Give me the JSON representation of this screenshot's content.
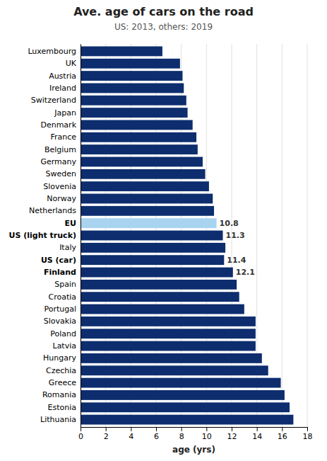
{
  "chart_data": {
    "type": "bar",
    "orientation": "horizontal",
    "title": "Ave. age of cars on the road",
    "subtitle": "US: 2013, others: 2019",
    "xlabel": "age (yrs)",
    "categories": [
      "Luxembourg",
      "UK",
      "Austria",
      "Ireland",
      "Switzerland",
      "Japan",
      "Denmark",
      "France",
      "Belgium",
      "Germany",
      "Sweden",
      "Slovenia",
      "Norway",
      "Netherlands",
      "EU",
      "US (light truck)",
      "Italy",
      "US (car)",
      "Finland",
      "Spain",
      "Croatia",
      "Portugal",
      "Slovakia",
      "Poland",
      "Latvia",
      "Hungary",
      "Czechia",
      "Greece",
      "Romania",
      "Estonia",
      "Lithuania"
    ],
    "values": [
      6.5,
      7.9,
      8.1,
      8.2,
      8.4,
      8.5,
      8.9,
      9.2,
      9.3,
      9.7,
      9.9,
      10.2,
      10.5,
      10.6,
      10.8,
      11.3,
      11.5,
      11.4,
      12.1,
      12.4,
      12.6,
      13.0,
      13.9,
      13.9,
      13.9,
      14.4,
      14.9,
      15.9,
      16.2,
      16.6,
      16.9
    ],
    "colors": [
      "#0d2d6e",
      "#0d2d6e",
      "#0d2d6e",
      "#0d2d6e",
      "#0d2d6e",
      "#0d2d6e",
      "#0d2d6e",
      "#0d2d6e",
      "#0d2d6e",
      "#0d2d6e",
      "#0d2d6e",
      "#0d2d6e",
      "#0d2d6e",
      "#0d2d6e",
      "#a8d4f0",
      "#0d2d6e",
      "#0d2d6e",
      "#0d2d6e",
      "#0d2d6e",
      "#0d2d6e",
      "#0d2d6e",
      "#0d2d6e",
      "#0d2d6e",
      "#0d2d6e",
      "#0d2d6e",
      "#0d2d6e",
      "#0d2d6e",
      "#0d2d6e",
      "#0d2d6e",
      "#0d2d6e",
      "#0d2d6e"
    ],
    "annotations": [
      {
        "category": "EU",
        "text": "10.8"
      },
      {
        "category": "US (light truck)",
        "text": "11.3"
      },
      {
        "category": "US (car)",
        "text": "11.4"
      },
      {
        "category": "Finland",
        "text": "12.1"
      }
    ],
    "xlim": [
      0,
      18
    ],
    "xticks": [
      0,
      2,
      4,
      6,
      8,
      10,
      12,
      14,
      16,
      18
    ],
    "grid": true
  }
}
